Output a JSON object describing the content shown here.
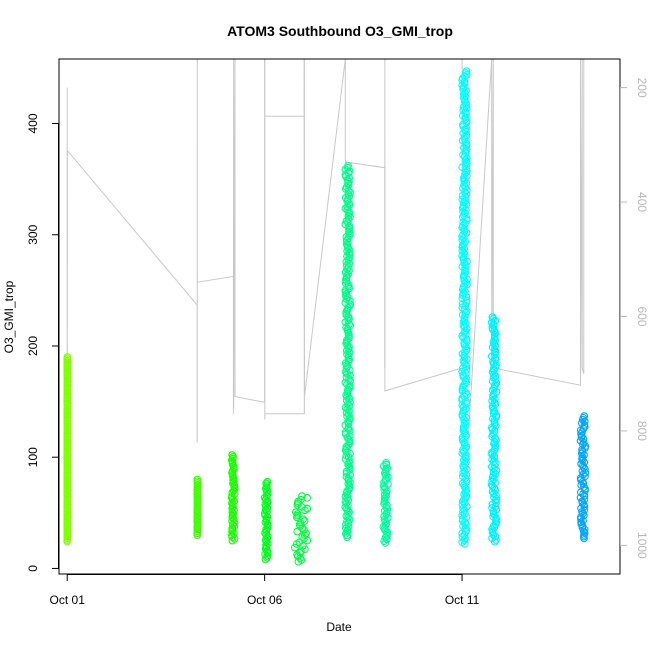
{
  "chart_data": {
    "type": "scatter",
    "title": "ATOM3 Southbound O3_GMI_trop",
    "xlabel": "Date",
    "ylabel": "O3_GMI_trop",
    "ylim": [
      -5,
      458
    ],
    "yticks": [
      0,
      100,
      200,
      300,
      400
    ],
    "xlim": [
      "2016-09-30T19:00",
      "2016-10-15T00:00"
    ],
    "xticks": [
      {
        "date": "2016-10-01",
        "label": "Oct 01"
      },
      {
        "date": "2016-10-06",
        "label": "Oct 06"
      },
      {
        "date": "2016-10-11",
        "label": "Oct 11"
      }
    ],
    "right_axis": {
      "quantity": "pressure",
      "reversed": true,
      "ylim": [
        1050,
        150
      ],
      "ticks": [
        200,
        400,
        600,
        800,
        1000
      ],
      "color": "#b8b8b8"
    },
    "marker": "open circle",
    "grid": false,
    "series": [
      {
        "x": "2016-10-01T00:00",
        "x_end": "2016-10-01T00:05",
        "ymin": 24,
        "ymax": 190,
        "color": "#80ff00"
      },
      {
        "x": "2016-10-04T07:00",
        "x_end": "2016-10-04T07:10",
        "ymin": 30,
        "ymax": 80,
        "color": "#3fff00"
      },
      {
        "x": "2016-10-05T04:00",
        "x_end": "2016-10-05T06:00",
        "ymin": 25,
        "ymax": 102,
        "color": "#1aff00"
      },
      {
        "x": "2016-10-06T00:00",
        "x_end": "2016-10-06T02:00",
        "ymin": 8,
        "ymax": 78,
        "color": "#00ff1a"
      },
      {
        "x": "2016-10-06T18:00",
        "x_end": "2016-10-07T02:00",
        "ymin": 6,
        "ymax": 65,
        "color": "#00ff40"
      },
      {
        "x": "2016-10-08T01:00",
        "x_end": "2016-10-08T04:00",
        "ymin": 28,
        "ymax": 362,
        "color": "#00ff88"
      },
      {
        "x": "2016-10-09T00:00",
        "x_end": "2016-10-09T03:00",
        "ymin": 23,
        "ymax": 95,
        "color": "#00ff99"
      },
      {
        "x": "2016-10-11T00:00",
        "x_end": "2016-10-11T03:00",
        "ymin": 22,
        "ymax": 447,
        "color": "#00ffff"
      },
      {
        "x": "2016-10-11T18:00",
        "x_end": "2016-10-11T21:00",
        "ymin": 24,
        "ymax": 226,
        "color": "#00f2ff"
      },
      {
        "x": "2016-10-14T00:00",
        "x_end": "2016-10-14T03:00",
        "ymin": 27,
        "ymax": 137,
        "color": "#00a6ff"
      }
    ],
    "pressure_trace": {
      "color": "#c8c8c8",
      "points": [
        [
          "2016-10-01T00:00",
          200
        ],
        [
          "2016-10-01T00:00",
          550
        ],
        [
          "2016-10-01T00:00",
          1000
        ],
        [
          "2016-10-01T00:05",
          310
        ],
        [
          "2016-10-04T07:00",
          580
        ],
        [
          "2016-10-04T07:00",
          820
        ],
        [
          "2016-10-04T07:05",
          150
        ],
        [
          "2016-10-04T07:05",
          540
        ],
        [
          "2016-10-05T05:00",
          530
        ],
        [
          "2016-10-05T05:00",
          770
        ],
        [
          "2016-10-05T05:10",
          150
        ],
        [
          "2016-10-05T05:10",
          760
        ],
        [
          "2016-10-05T06:00",
          150
        ],
        [
          "2016-10-05T06:00",
          740
        ],
        [
          "2016-10-06T00:00",
          750
        ],
        [
          "2016-10-06T00:00",
          150
        ],
        [
          "2016-10-06T00:05",
          780
        ],
        [
          "2016-10-06T00:05",
          150
        ],
        [
          "2016-10-06T00:05",
          250
        ],
        [
          "2016-10-07T00:00",
          250
        ],
        [
          "2016-10-07T00:00",
          150
        ],
        [
          "2016-10-07T00:05",
          770
        ],
        [
          "2016-10-06T00:00",
          770
        ],
        [
          "2016-10-07T00:10",
          770
        ],
        [
          "2016-10-07T00:10",
          150
        ],
        [
          "2016-10-07T00:15",
          740
        ],
        [
          "2016-10-08T01:00",
          150
        ],
        [
          "2016-10-08T01:00",
          700
        ],
        [
          "2016-10-08T01:05",
          330
        ],
        [
          "2016-10-09T01:00",
          340
        ],
        [
          "2016-10-09T01:00",
          690
        ],
        [
          "2016-10-09T01:05",
          150
        ],
        [
          "2016-10-09T01:05",
          730
        ],
        [
          "2016-10-11T00:00",
          690
        ],
        [
          "2016-10-11T00:00",
          150
        ],
        [
          "2016-10-11T00:05",
          980
        ],
        [
          "2016-10-11T18:00",
          150
        ],
        [
          "2016-10-11T18:00",
          690
        ],
        [
          "2016-10-11T19:00",
          150
        ],
        [
          "2016-10-11T19:00",
          690
        ],
        [
          "2016-10-14T00:00",
          720
        ],
        [
          "2016-10-14T00:00",
          150
        ],
        [
          "2016-10-14T00:05",
          700
        ],
        [
          "2016-10-14T01:00",
          150
        ],
        [
          "2016-10-14T01:00",
          690
        ],
        [
          "2016-10-14T02:00",
          700
        ],
        [
          "2016-10-14T02:00",
          150
        ]
      ]
    }
  }
}
